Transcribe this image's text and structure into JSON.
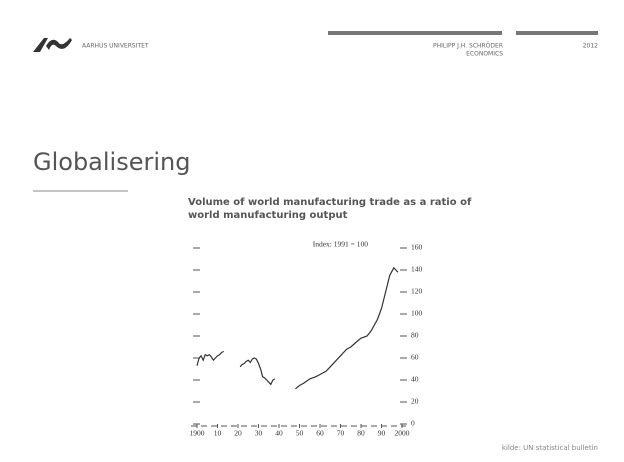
{
  "header": {
    "org": "AARHUS UNIVERSITET",
    "author": "PHILIPP J.H. SCHRÖDER",
    "department": "ECONOMICS",
    "year": "2012"
  },
  "slide_title": "Globalisering",
  "source": "kilde: UN statistical bulletin",
  "chart_data": {
    "type": "line",
    "title": "Volume of world manufacturing trade as a ratio of world manufacturing output",
    "annotation": "Index: 1991 = 100",
    "color": "#333333",
    "x": [
      1900,
      1901,
      1902,
      1903,
      1904,
      1905,
      1906,
      1907,
      1908,
      1909,
      1910,
      1911,
      1912,
      1913,
      1916,
      1921,
      1922,
      1923,
      1924,
      1925,
      1926,
      1927,
      1928,
      1929,
      1930,
      1931,
      1932,
      1933,
      1934,
      1935,
      1936,
      1937,
      1938,
      1942,
      1948,
      1950,
      1952,
      1955,
      1958,
      1960,
      1963,
      1965,
      1968,
      1970,
      1973,
      1975,
      1978,
      1980,
      1983,
      1985,
      1988,
      1990,
      1992,
      1994,
      1996,
      1997,
      1998
    ],
    "values": [
      53,
      60,
      62,
      58,
      63,
      62,
      63,
      61,
      58,
      60,
      62,
      63,
      65,
      66,
      null,
      52,
      54,
      55,
      57,
      58,
      56,
      59,
      60,
      59,
      55,
      50,
      43,
      42,
      40,
      38,
      36,
      40,
      41,
      null,
      32,
      35,
      37,
      41,
      43,
      45,
      48,
      52,
      58,
      62,
      68,
      70,
      75,
      78,
      80,
      85,
      95,
      105,
      120,
      135,
      142,
      140,
      138
    ],
    "xlim": [
      1900,
      2000
    ],
    "xticks": [
      {
        "value": 1900,
        "label": "1900"
      },
      {
        "value": 1910,
        "label": "10"
      },
      {
        "value": 1920,
        "label": "20"
      },
      {
        "value": 1930,
        "label": "30"
      },
      {
        "value": 1940,
        "label": "40"
      },
      {
        "value": 1950,
        "label": "50"
      },
      {
        "value": 1960,
        "label": "60"
      },
      {
        "value": 1970,
        "label": "70"
      },
      {
        "value": 1980,
        "label": "80"
      },
      {
        "value": 1990,
        "label": "90"
      },
      {
        "value": 2000,
        "label": "2000"
      }
    ],
    "ylim": [
      0,
      160
    ],
    "yticks": [
      0,
      20,
      40,
      60,
      80,
      100,
      120,
      140,
      160
    ]
  }
}
